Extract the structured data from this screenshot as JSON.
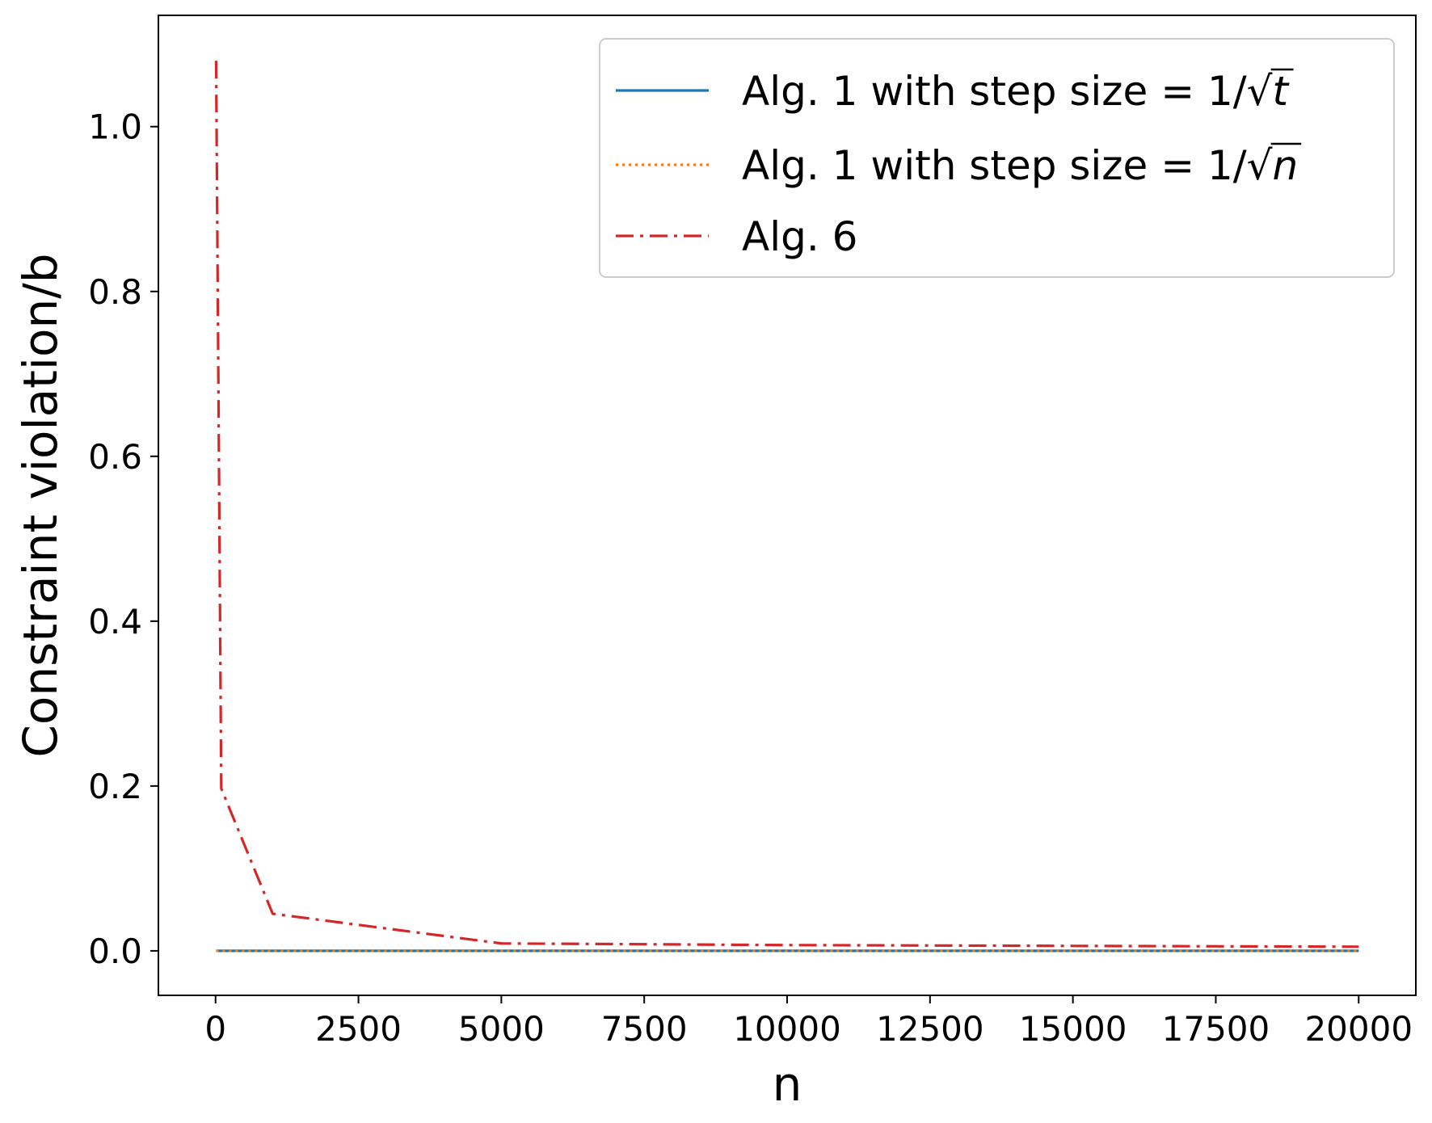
{
  "chart_data": {
    "type": "line",
    "xlabel": "n",
    "ylabel": "Constraint violation/b",
    "xlim": [
      -1000,
      21000
    ],
    "ylim": [
      -0.054,
      1.135
    ],
    "xticks": [
      {
        "value": 0,
        "label": "0"
      },
      {
        "value": 2500,
        "label": "2500"
      },
      {
        "value": 5000,
        "label": "5000"
      },
      {
        "value": 7500,
        "label": "7500"
      },
      {
        "value": 10000,
        "label": "10000"
      },
      {
        "value": 12500,
        "label": "12500"
      },
      {
        "value": 15000,
        "label": "15000"
      },
      {
        "value": 17500,
        "label": "17500"
      },
      {
        "value": 20000,
        "label": "20000"
      }
    ],
    "yticks": [
      {
        "value": 0.0,
        "label": "0.0"
      },
      {
        "value": 0.2,
        "label": "0.2"
      },
      {
        "value": 0.4,
        "label": "0.4"
      },
      {
        "value": 0.6,
        "label": "0.6"
      },
      {
        "value": 0.8,
        "label": "0.8"
      },
      {
        "value": 1.0,
        "label": "1.0"
      }
    ],
    "legend_position": "top-right",
    "series": [
      {
        "name_prefix": "Alg. 1 with step size = 1/",
        "name_radicand": "t",
        "color": "#1f77b4",
        "dash": "solid",
        "x": [
          10,
          100,
          1000,
          5000,
          10000,
          15000,
          20000
        ],
        "y": [
          0,
          0,
          0,
          0,
          0,
          0,
          0
        ]
      },
      {
        "name_prefix": "Alg. 1 with step size = 1/",
        "name_radicand": "n",
        "color": "#ff7f0e",
        "dash": "dotted",
        "x": [
          10,
          100,
          1000,
          5000,
          10000,
          15000,
          20000
        ],
        "y": [
          0,
          0,
          0,
          0,
          0,
          0,
          0
        ]
      },
      {
        "name_prefix": "Alg. 6",
        "name_radicand": "",
        "color": "#d62728",
        "dash": "dashdot",
        "x": [
          10,
          100,
          1000,
          5000,
          10000,
          15000,
          20000
        ],
        "y": [
          1.08,
          0.197,
          0.045,
          0.009,
          0.007,
          0.006,
          0.005
        ]
      }
    ]
  }
}
